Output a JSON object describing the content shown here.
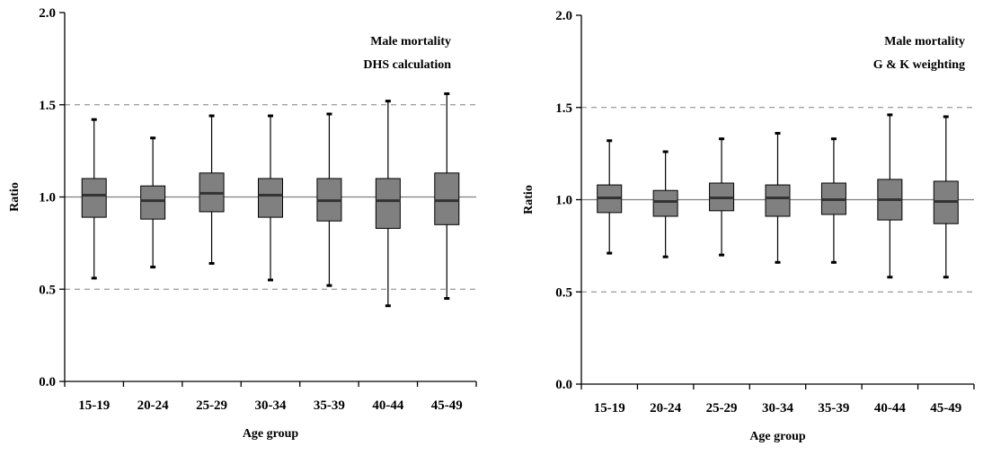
{
  "chart_data": [
    {
      "type": "box",
      "annotation": [
        "Male mortality",
        "DHS calculation"
      ],
      "xlabel": "Age group",
      "ylabel": "Ratio",
      "ylim": [
        0,
        2
      ],
      "yticks": [
        "0.0",
        "0.5",
        "1.0",
        "1.5",
        "2.0"
      ],
      "reference_line": 1.0,
      "dashed_gridlines": [
        0.5,
        1.5
      ],
      "categories": [
        "15-19",
        "20-24",
        "25-29",
        "30-34",
        "35-39",
        "40-44",
        "45-49"
      ],
      "boxes": [
        {
          "min": 0.56,
          "q1": 0.89,
          "median": 1.01,
          "q3": 1.1,
          "max": 1.42
        },
        {
          "min": 0.62,
          "q1": 0.88,
          "median": 0.98,
          "q3": 1.06,
          "max": 1.32
        },
        {
          "min": 0.64,
          "q1": 0.92,
          "median": 1.02,
          "q3": 1.13,
          "max": 1.44
        },
        {
          "min": 0.55,
          "q1": 0.89,
          "median": 1.01,
          "q3": 1.1,
          "max": 1.44
        },
        {
          "min": 0.52,
          "q1": 0.87,
          "median": 0.98,
          "q3": 1.1,
          "max": 1.45
        },
        {
          "min": 0.41,
          "q1": 0.83,
          "median": 0.98,
          "q3": 1.1,
          "max": 1.52
        },
        {
          "min": 0.45,
          "q1": 0.85,
          "median": 0.98,
          "q3": 1.13,
          "max": 1.56
        }
      ]
    },
    {
      "type": "box",
      "annotation": [
        "Male mortality",
        "G & K weighting"
      ],
      "xlabel": "Age group",
      "ylabel": "Ratio",
      "ylim": [
        0,
        2
      ],
      "yticks": [
        "0.0",
        "0.5",
        "1.0",
        "1.5",
        "2.0"
      ],
      "reference_line": 1.0,
      "dashed_gridlines": [
        0.5,
        1.5
      ],
      "categories": [
        "15-19",
        "20-24",
        "25-29",
        "30-34",
        "35-39",
        "40-44",
        "45-49"
      ],
      "boxes": [
        {
          "min": 0.71,
          "q1": 0.93,
          "median": 1.01,
          "q3": 1.08,
          "max": 1.32
        },
        {
          "min": 0.69,
          "q1": 0.91,
          "median": 0.99,
          "q3": 1.05,
          "max": 1.26
        },
        {
          "min": 0.7,
          "q1": 0.94,
          "median": 1.01,
          "q3": 1.09,
          "max": 1.33
        },
        {
          "min": 0.66,
          "q1": 0.91,
          "median": 1.01,
          "q3": 1.08,
          "max": 1.36
        },
        {
          "min": 0.66,
          "q1": 0.92,
          "median": 1.0,
          "q3": 1.09,
          "max": 1.33
        },
        {
          "min": 0.58,
          "q1": 0.89,
          "median": 1.0,
          "q3": 1.11,
          "max": 1.46
        },
        {
          "min": 0.58,
          "q1": 0.87,
          "median": 0.99,
          "q3": 1.1,
          "max": 1.45
        }
      ]
    }
  ]
}
